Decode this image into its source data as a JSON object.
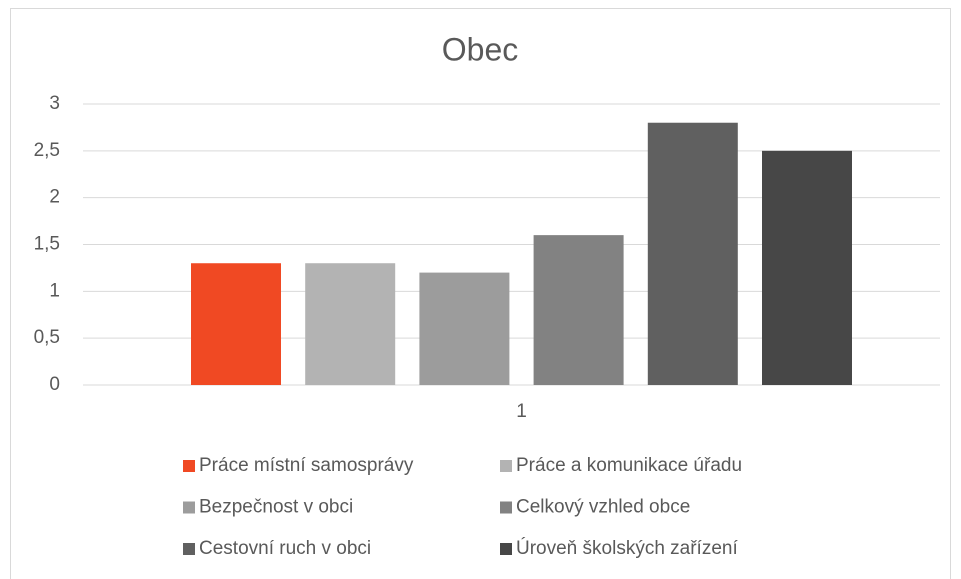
{
  "chart_data": {
    "type": "bar",
    "title": "Obec",
    "categories": [
      "1"
    ],
    "series": [
      {
        "name": "Práce místní samosprávy",
        "color": "#f04923",
        "values": [
          1.3
        ]
      },
      {
        "name": "Práce a komunikace úřadu",
        "color": "#b3b3b3",
        "values": [
          1.3
        ]
      },
      {
        "name": "Bezpečnost v obci",
        "color": "#9c9c9c",
        "values": [
          1.2
        ]
      },
      {
        "name": "Celkový vzhled obce",
        "color": "#828282",
        "values": [
          1.6
        ]
      },
      {
        "name": "Cestovní ruch v obci",
        "color": "#606060",
        "values": [
          2.8
        ]
      },
      {
        "name": "Úroveň školských zařízení",
        "color": "#474747",
        "values": [
          2.5
        ]
      }
    ],
    "ylim": [
      0,
      3
    ],
    "yticks": [
      0,
      {
        "value": 0.5,
        "label": "0,5"
      },
      1,
      {
        "value": 1.5,
        "label": "1,5"
      },
      2,
      {
        "value": 2.5,
        "label": "2,5"
      },
      3
    ],
    "grid": true
  }
}
